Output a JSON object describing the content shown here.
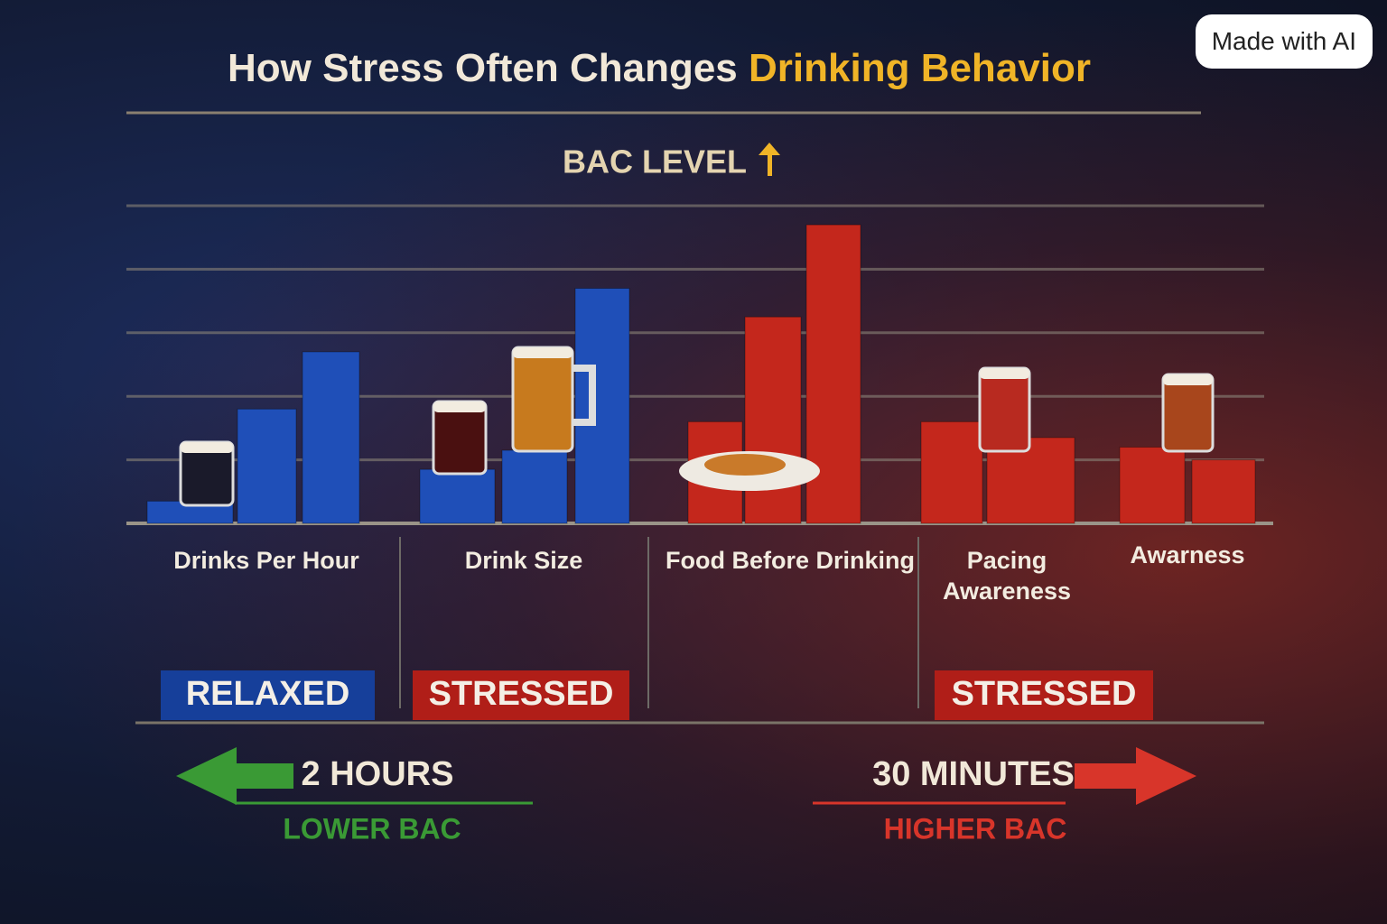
{
  "chart_data": {
    "type": "grouped-bar",
    "title": "How Stress Often Changes ",
    "title_highlight": "Drinking Behavior",
    "y_label": "BAC LEVEL",
    "ylim": [
      0,
      5
    ],
    "grid": true,
    "groups": [
      {
        "label": "Drinks Per Hour",
        "color": "#1f4fb8",
        "values": [
          0.35,
          1.8,
          2.7
        ]
      },
      {
        "label": "Drink Size",
        "color": "#1f4fb8",
        "values": [
          0.85,
          1.15,
          3.7
        ]
      },
      {
        "label": "Food Before Drinking",
        "color": "#c4271c",
        "values": [
          1.6,
          3.25,
          4.7
        ]
      },
      {
        "label": "Pacing Awareness",
        "color": "#c4271c",
        "values": [
          1.6,
          1.35
        ]
      },
      {
        "label": "Awarness",
        "color": "#c4271c",
        "values": [
          1.2,
          1.0
        ]
      }
    ],
    "tags": [
      {
        "text": "RELAXED",
        "color": "#163f9a"
      },
      {
        "text": "STRESSED",
        "color": "#b01e18"
      },
      {
        "text": "STRESSED",
        "color": "#b01e18"
      }
    ],
    "left_arrow": {
      "text": "2 HOURS",
      "sub": "LOWER BAC",
      "color": "#3a9a35"
    },
    "right_arrow": {
      "text": "30 MINUTES",
      "sub": "HIGHER BAC",
      "color": "#d8352a"
    }
  },
  "badge": "Made with AI"
}
